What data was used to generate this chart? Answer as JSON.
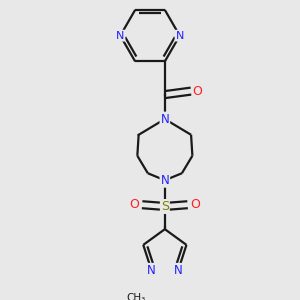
{
  "bg_color": "#e8e8e8",
  "bond_color": "#1a1a1a",
  "n_color": "#2020ff",
  "o_color": "#ff2020",
  "s_color": "#808000",
  "line_width": 1.6,
  "figsize": [
    3.0,
    3.0
  ],
  "dpi": 100,
  "xlim": [
    -2.2,
    2.2
  ],
  "ylim": [
    -4.5,
    3.0
  ]
}
